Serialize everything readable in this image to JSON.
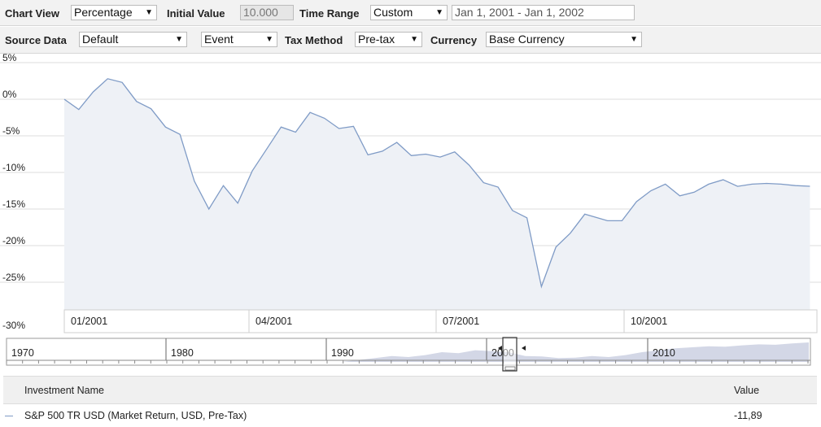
{
  "toolbar1": {
    "chart_view_label": "Chart View",
    "chart_view_value": "Percentage",
    "initial_value_label": "Initial Value",
    "initial_value_value": "10.000",
    "time_range_label": "Time Range",
    "time_range_value": "Custom",
    "date_range_value": "Jan 1, 2001 - Jan 1, 2002"
  },
  "toolbar2": {
    "source_data_label": "Source Data",
    "source_data_value": "Default",
    "event_value": "Event",
    "tax_method_label": "Tax Method",
    "tax_method_value": "Pre-tax",
    "currency_label": "Currency",
    "currency_value": "Base Currency"
  },
  "icons": {
    "dropdown": "chevron-down-icon",
    "nav_left": "triangle-left-icon",
    "nav_right": "triangle-right-icon"
  },
  "colors": {
    "series_line": "#7f9bc6",
    "series_fill": "#eef1f6",
    "navigator_fill": "#d3d7e6"
  },
  "chart_data": {
    "type": "area",
    "title": "",
    "xlabel": "",
    "ylabel": "",
    "y_ticks": [
      "5%",
      "0%",
      "-5%",
      "-10%",
      "-15%",
      "-20%",
      "-25%",
      "-30%"
    ],
    "ylim": [
      -30,
      5
    ],
    "x_ticks": [
      "01/2001",
      "04/2001",
      "07/2001",
      "10/2001"
    ],
    "grid": true,
    "series": [
      {
        "name": "S&P 500 TR USD (Market Return, USD, Pre-Tax)",
        "x": [
          "2001-01-01",
          "2001-01-08",
          "2001-01-15",
          "2001-01-22",
          "2001-01-29",
          "2001-02-05",
          "2001-02-12",
          "2001-02-19",
          "2001-02-26",
          "2001-03-05",
          "2001-03-12",
          "2001-03-19",
          "2001-03-26",
          "2001-04-02",
          "2001-04-09",
          "2001-04-16",
          "2001-04-23",
          "2001-04-30",
          "2001-05-07",
          "2001-05-14",
          "2001-05-21",
          "2001-05-28",
          "2001-06-04",
          "2001-06-11",
          "2001-06-18",
          "2001-06-25",
          "2001-07-02",
          "2001-07-09",
          "2001-07-16",
          "2001-07-23",
          "2001-07-30",
          "2001-08-06",
          "2001-08-13",
          "2001-08-20",
          "2001-08-27",
          "2001-09-03",
          "2001-09-10",
          "2001-09-21",
          "2001-09-28",
          "2001-10-05",
          "2001-10-12",
          "2001-10-19",
          "2001-10-26",
          "2001-11-02",
          "2001-11-09",
          "2001-11-16",
          "2001-11-23",
          "2001-11-30",
          "2001-12-07",
          "2001-12-14",
          "2001-12-21",
          "2001-12-28"
        ],
        "values": [
          0.0,
          -1.4,
          1.0,
          2.8,
          2.3,
          -0.3,
          -1.3,
          -3.8,
          -4.8,
          -11.2,
          -15.0,
          -11.8,
          -14.2,
          -9.8,
          -6.8,
          -3.8,
          -4.5,
          -1.8,
          -2.6,
          -4.0,
          -3.7,
          -7.6,
          -7.1,
          -5.9,
          -7.7,
          -7.5,
          -7.9,
          -7.2,
          -9.0,
          -11.4,
          -12.0,
          -15.2,
          -16.2,
          -25.6,
          -20.2,
          -18.3,
          -15.7,
          -16.6,
          -16.6,
          -14.0,
          -12.5,
          -11.6,
          -13.2,
          -12.7,
          -11.6,
          -11.0,
          -11.9,
          -11.6,
          -11.5,
          -11.6,
          -11.8,
          -11.89
        ]
      }
    ],
    "navigator": {
      "x_ticks": [
        "1970",
        "1980",
        "1990",
        "2000",
        "2010"
      ]
    }
  },
  "legend_table": {
    "col_name": "Investment Name",
    "col_value": "Value",
    "rows": [
      {
        "name": "S&P 500 TR USD (Market Return, USD, Pre-Tax)",
        "value": "-11,89"
      }
    ]
  }
}
